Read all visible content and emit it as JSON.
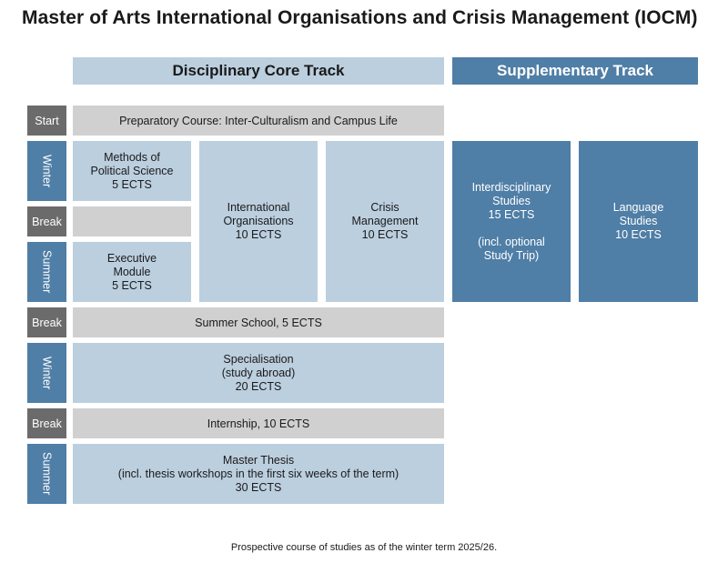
{
  "title": "Master of Arts International Organisations and Crisis Management (IOCM)",
  "headers": {
    "core": "Disciplinary Core Track",
    "supplementary": "Supplementary Track"
  },
  "labels": {
    "start": "Start",
    "winter_1": "Winter",
    "break_1": "Break",
    "summer_1": "Summer",
    "break_2": "Break",
    "winter_2": "Winter",
    "break_3": "Break",
    "summer_2": "Summer"
  },
  "colors": {
    "light_blue": "#bccfdf",
    "dark_blue": "#4f7ea6",
    "grey_label": "#6b6b6b",
    "grey_box": "#d0d0d0"
  },
  "blocks": {
    "preparatory": "Preparatory Course: Inter-Culturalism and Campus Life",
    "methods": {
      "line1": "Methods of",
      "line2": "Political Science",
      "ects": "5 ECTS"
    },
    "executive": {
      "line1": "Executive",
      "line2": "Module",
      "ects": "5 ECTS"
    },
    "intl_orgs": {
      "line1": "International",
      "line2": "Organisations",
      "ects": "10 ECTS"
    },
    "crisis": {
      "line1": "Crisis",
      "line2": "Management",
      "ects": "10 ECTS"
    },
    "interdisciplinary": {
      "line1": "Interdisciplinary",
      "line2": "Studies",
      "ects": "15 ECTS",
      "note1": "(incl. optional",
      "note2": "Study Trip)"
    },
    "language": {
      "line1": "Language",
      "line2": "Studies",
      "ects": "10 ECTS"
    },
    "summer_school": "Summer School, 5 ECTS",
    "specialisation": {
      "line1": "Specialisation",
      "line2": "(study abroad)",
      "ects": "20 ECTS"
    },
    "internship": "Internship, 10 ECTS",
    "thesis": {
      "line1": "Master Thesis",
      "line2": "(incl. thesis workshops in the first six weeks of the term)",
      "ects": "30 ECTS"
    }
  },
  "footnote": "Prospective course of studies as of the winter term 2025/26."
}
